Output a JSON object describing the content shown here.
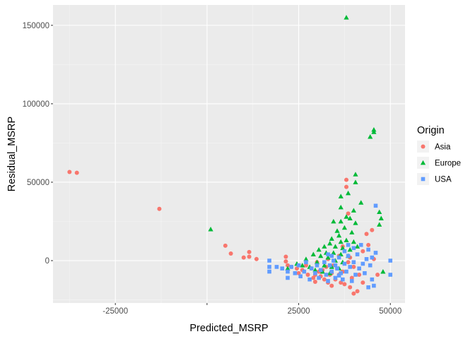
{
  "chart_data": {
    "type": "scatter",
    "title": "",
    "xlabel": "Predicted_MSRP",
    "ylabel": "Residual_MSRP",
    "xlim": [
      -42000,
      54000
    ],
    "ylim": [
      -27000,
      163000
    ],
    "x_ticks": [
      -25000,
      0,
      25000,
      50000
    ],
    "x_tick_labels": [
      "-25000",
      "",
      "25000",
      "50000"
    ],
    "y_ticks": [
      0,
      50000,
      100000,
      150000
    ],
    "y_tick_labels": [
      "0",
      "50000",
      "100000",
      "150000"
    ],
    "grid": true,
    "background": "#ebebeb",
    "legend": {
      "title": "Origin",
      "position": "right"
    },
    "series": [
      {
        "name": "Asia",
        "color": "#f8766d",
        "shape": "circle",
        "points": [
          [
            -37500,
            56500
          ],
          [
            -35500,
            56000
          ],
          [
            -13000,
            33000
          ],
          [
            5000,
            9500
          ],
          [
            6500,
            4500
          ],
          [
            10000,
            2000
          ],
          [
            11500,
            5500
          ],
          [
            11500,
            2500
          ],
          [
            13500,
            1000
          ],
          [
            21500,
            2500
          ],
          [
            21500,
            -500
          ],
          [
            22000,
            -3000
          ],
          [
            23000,
            -4000
          ],
          [
            24500,
            -5000
          ],
          [
            25000,
            -8000
          ],
          [
            26000,
            -6000
          ],
          [
            27500,
            -9000
          ],
          [
            28500,
            -5000
          ],
          [
            29000,
            -11000
          ],
          [
            29500,
            -13500
          ],
          [
            29500,
            -9000
          ],
          [
            30500,
            -7000
          ],
          [
            31000,
            -10000
          ],
          [
            31500,
            -6000
          ],
          [
            32000,
            -12000
          ],
          [
            32500,
            -4000
          ],
          [
            33000,
            -14000
          ],
          [
            33500,
            -9000
          ],
          [
            34000,
            -16000
          ],
          [
            34000,
            -8000
          ],
          [
            34500,
            -3000
          ],
          [
            35000,
            -12000
          ],
          [
            35500,
            -5000
          ],
          [
            36000,
            -9000
          ],
          [
            36500,
            -14000
          ],
          [
            37000,
            -7000
          ],
          [
            37500,
            -15000
          ],
          [
            38000,
            47000
          ],
          [
            38000,
            51500
          ],
          [
            38500,
            30000
          ],
          [
            39000,
            -17000
          ],
          [
            39000,
            2000
          ],
          [
            39500,
            -11000
          ],
          [
            40000,
            -21000
          ],
          [
            40000,
            -4000
          ],
          [
            41000,
            -19500
          ],
          [
            41500,
            -9000
          ],
          [
            42500,
            -14000
          ],
          [
            42500,
            6000
          ],
          [
            43500,
            17000
          ],
          [
            44000,
            10000
          ],
          [
            45000,
            19500
          ],
          [
            45500,
            1000
          ],
          [
            46500,
            -9000
          ],
          [
            38500,
            -1000
          ],
          [
            36000,
            3000
          ],
          [
            33000,
            1000
          ],
          [
            30000,
            -1000
          ],
          [
            27000,
            -3000
          ],
          [
            37000,
            9000
          ]
        ]
      },
      {
        "name": "Europe",
        "color": "#00ba38",
        "shape": "triangle",
        "points": [
          [
            38000,
            155000
          ],
          [
            45500,
            83500
          ],
          [
            45500,
            82000
          ],
          [
            44500,
            79000
          ],
          [
            40500,
            55000
          ],
          [
            40500,
            50000
          ],
          [
            38500,
            43000
          ],
          [
            36500,
            41000
          ],
          [
            42000,
            37000
          ],
          [
            47000,
            31000
          ],
          [
            36500,
            34000
          ],
          [
            40000,
            32000
          ],
          [
            38000,
            28000
          ],
          [
            47500,
            27000
          ],
          [
            47000,
            23000
          ],
          [
            1000,
            20000
          ],
          [
            34500,
            25000
          ],
          [
            36500,
            25000
          ],
          [
            39000,
            27000
          ],
          [
            40500,
            24000
          ],
          [
            35500,
            19000
          ],
          [
            37500,
            21000
          ],
          [
            39500,
            18000
          ],
          [
            34000,
            14000
          ],
          [
            36000,
            16000
          ],
          [
            38000,
            13000
          ],
          [
            40000,
            12000
          ],
          [
            32000,
            9000
          ],
          [
            33500,
            11000
          ],
          [
            35000,
            9000
          ],
          [
            37000,
            8000
          ],
          [
            39000,
            7000
          ],
          [
            41000,
            9000
          ],
          [
            30500,
            7000
          ],
          [
            32500,
            5000
          ],
          [
            34500,
            5000
          ],
          [
            36500,
            4000
          ],
          [
            38500,
            3000
          ],
          [
            29000,
            4000
          ],
          [
            31000,
            3000
          ],
          [
            33000,
            2000
          ],
          [
            35000,
            0
          ],
          [
            37000,
            -1000
          ],
          [
            27000,
            1000
          ],
          [
            30000,
            -1000
          ],
          [
            32000,
            -3000
          ],
          [
            34000,
            -4000
          ],
          [
            26000,
            -3000
          ],
          [
            28000,
            -4000
          ],
          [
            29500,
            -6000
          ],
          [
            31500,
            -7000
          ],
          [
            33500,
            -8000
          ],
          [
            22000,
            -5000
          ],
          [
            36000,
            -5000
          ],
          [
            48000,
            -7000
          ],
          [
            24500,
            -2000
          ],
          [
            36500,
            12000
          ]
        ]
      },
      {
        "name": "USA",
        "color": "#619cff",
        "shape": "square",
        "points": [
          [
            17000,
            0
          ],
          [
            17000,
            -4000
          ],
          [
            17000,
            -7000
          ],
          [
            19000,
            -4000
          ],
          [
            20500,
            -5000
          ],
          [
            22000,
            -7000
          ],
          [
            22000,
            -11000
          ],
          [
            23000,
            -4000
          ],
          [
            24000,
            -8000
          ],
          [
            25000,
            -3000
          ],
          [
            25500,
            -10000
          ],
          [
            26500,
            -7000
          ],
          [
            27000,
            -1000
          ],
          [
            28000,
            -12000
          ],
          [
            28500,
            -5000
          ],
          [
            29500,
            -8000
          ],
          [
            30000,
            -3000
          ],
          [
            30500,
            -11000
          ],
          [
            31000,
            -6000
          ],
          [
            32000,
            -1000
          ],
          [
            32500,
            -9000
          ],
          [
            33000,
            -13000
          ],
          [
            33000,
            4000
          ],
          [
            33500,
            -3000
          ],
          [
            34000,
            -7000
          ],
          [
            34500,
            0
          ],
          [
            35000,
            -11000
          ],
          [
            35500,
            -5000
          ],
          [
            36000,
            2000
          ],
          [
            36500,
            -8000
          ],
          [
            37000,
            -12000
          ],
          [
            37500,
            6000
          ],
          [
            37500,
            -2000
          ],
          [
            38000,
            -7000
          ],
          [
            38500,
            10000
          ],
          [
            38500,
            3000
          ],
          [
            39000,
            -4000
          ],
          [
            39500,
            -13000
          ],
          [
            40000,
            8000
          ],
          [
            40000,
            -1000
          ],
          [
            40500,
            -9000
          ],
          [
            41000,
            4000
          ],
          [
            41500,
            -5000
          ],
          [
            42000,
            10000
          ],
          [
            42500,
            -2000
          ],
          [
            43000,
            -8000
          ],
          [
            43500,
            1000
          ],
          [
            44000,
            7000
          ],
          [
            44500,
            -3000
          ],
          [
            45000,
            -12000
          ],
          [
            45500,
            -16000
          ],
          [
            46000,
            35000
          ],
          [
            46000,
            5000
          ],
          [
            45000,
            2000
          ],
          [
            50000,
            0
          ],
          [
            50000,
            -9000
          ],
          [
            44000,
            -17000
          ],
          [
            36000,
            -9500
          ],
          [
            35000,
            -3000
          ],
          [
            34000,
            3000
          ]
        ]
      }
    ]
  }
}
